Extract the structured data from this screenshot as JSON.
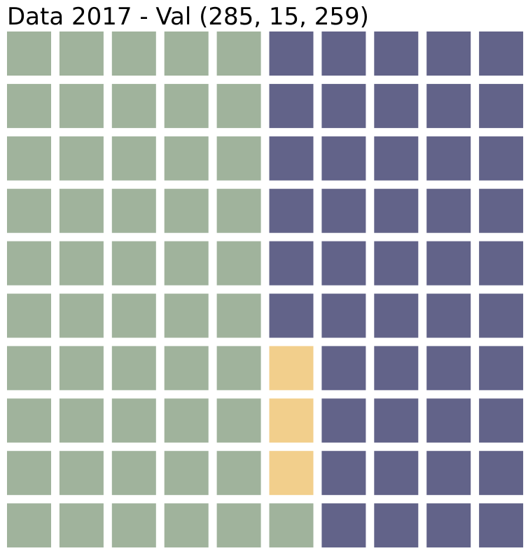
{
  "chart_data": {
    "type": "waffle",
    "title": "Data 2017 - Val (285, 15, 259)",
    "grid": {
      "rows": 10,
      "columns": 10,
      "fill_order": "column-major, bottom-to-top, left-to-right"
    },
    "values": [
      285,
      15,
      259
    ],
    "squares": [
      51,
      3,
      46
    ],
    "colors": [
      "#a0b39c",
      "#f2cf8c",
      "#626389"
    ]
  }
}
